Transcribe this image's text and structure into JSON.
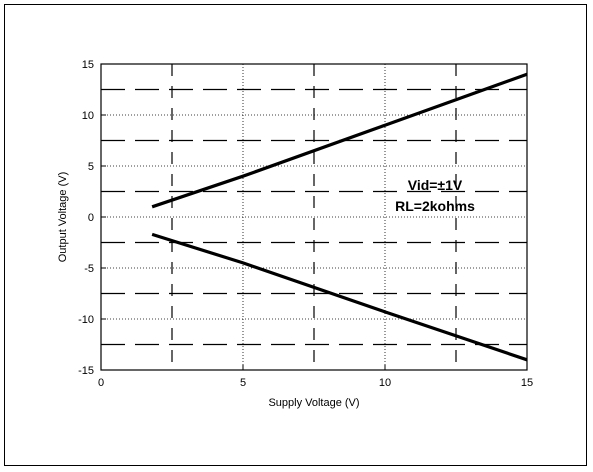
{
  "chart_data": {
    "type": "line",
    "title": "",
    "xlabel": "Supply Voltage (V)",
    "ylabel": "Output Voltage (V)",
    "xlim": [
      0,
      15
    ],
    "ylim": [
      -15,
      15
    ],
    "x_ticks": [
      0,
      5,
      10,
      15
    ],
    "y_ticks": [
      15,
      10,
      5,
      0,
      -5,
      -10,
      -15
    ],
    "grid": true,
    "annotations": [
      "Vid=±1V",
      "RL=2kohms"
    ],
    "series": [
      {
        "x": [
          1.8,
          5,
          10,
          15
        ],
        "y": [
          1.0,
          4.0,
          9.0,
          14.0
        ]
      },
      {
        "x": [
          1.8,
          5,
          10,
          15
        ],
        "y": [
          -1.7,
          -4.5,
          -9.3,
          -14.0
        ]
      }
    ]
  }
}
